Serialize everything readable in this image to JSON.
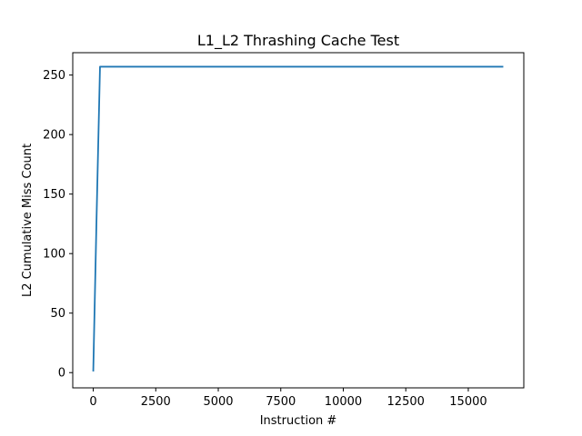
{
  "chart_data": {
    "type": "line",
    "title": "L1_L2 Thrashing Cache Test",
    "xlabel": "Instruction #",
    "ylabel": "L2 Cumulative Miss Count",
    "xlim": [
      -820,
      17220
    ],
    "ylim": [
      -12.8,
      268.8
    ],
    "xticks": [
      0,
      2500,
      5000,
      7500,
      10000,
      12500,
      15000
    ],
    "yticks": [
      0,
      50,
      100,
      150,
      200,
      250
    ],
    "grid": false,
    "series": [
      {
        "color": "#1f77b4",
        "x": [
          0,
          130,
          270,
          16400
        ],
        "y": [
          1,
          128,
          257,
          257
        ]
      }
    ]
  }
}
